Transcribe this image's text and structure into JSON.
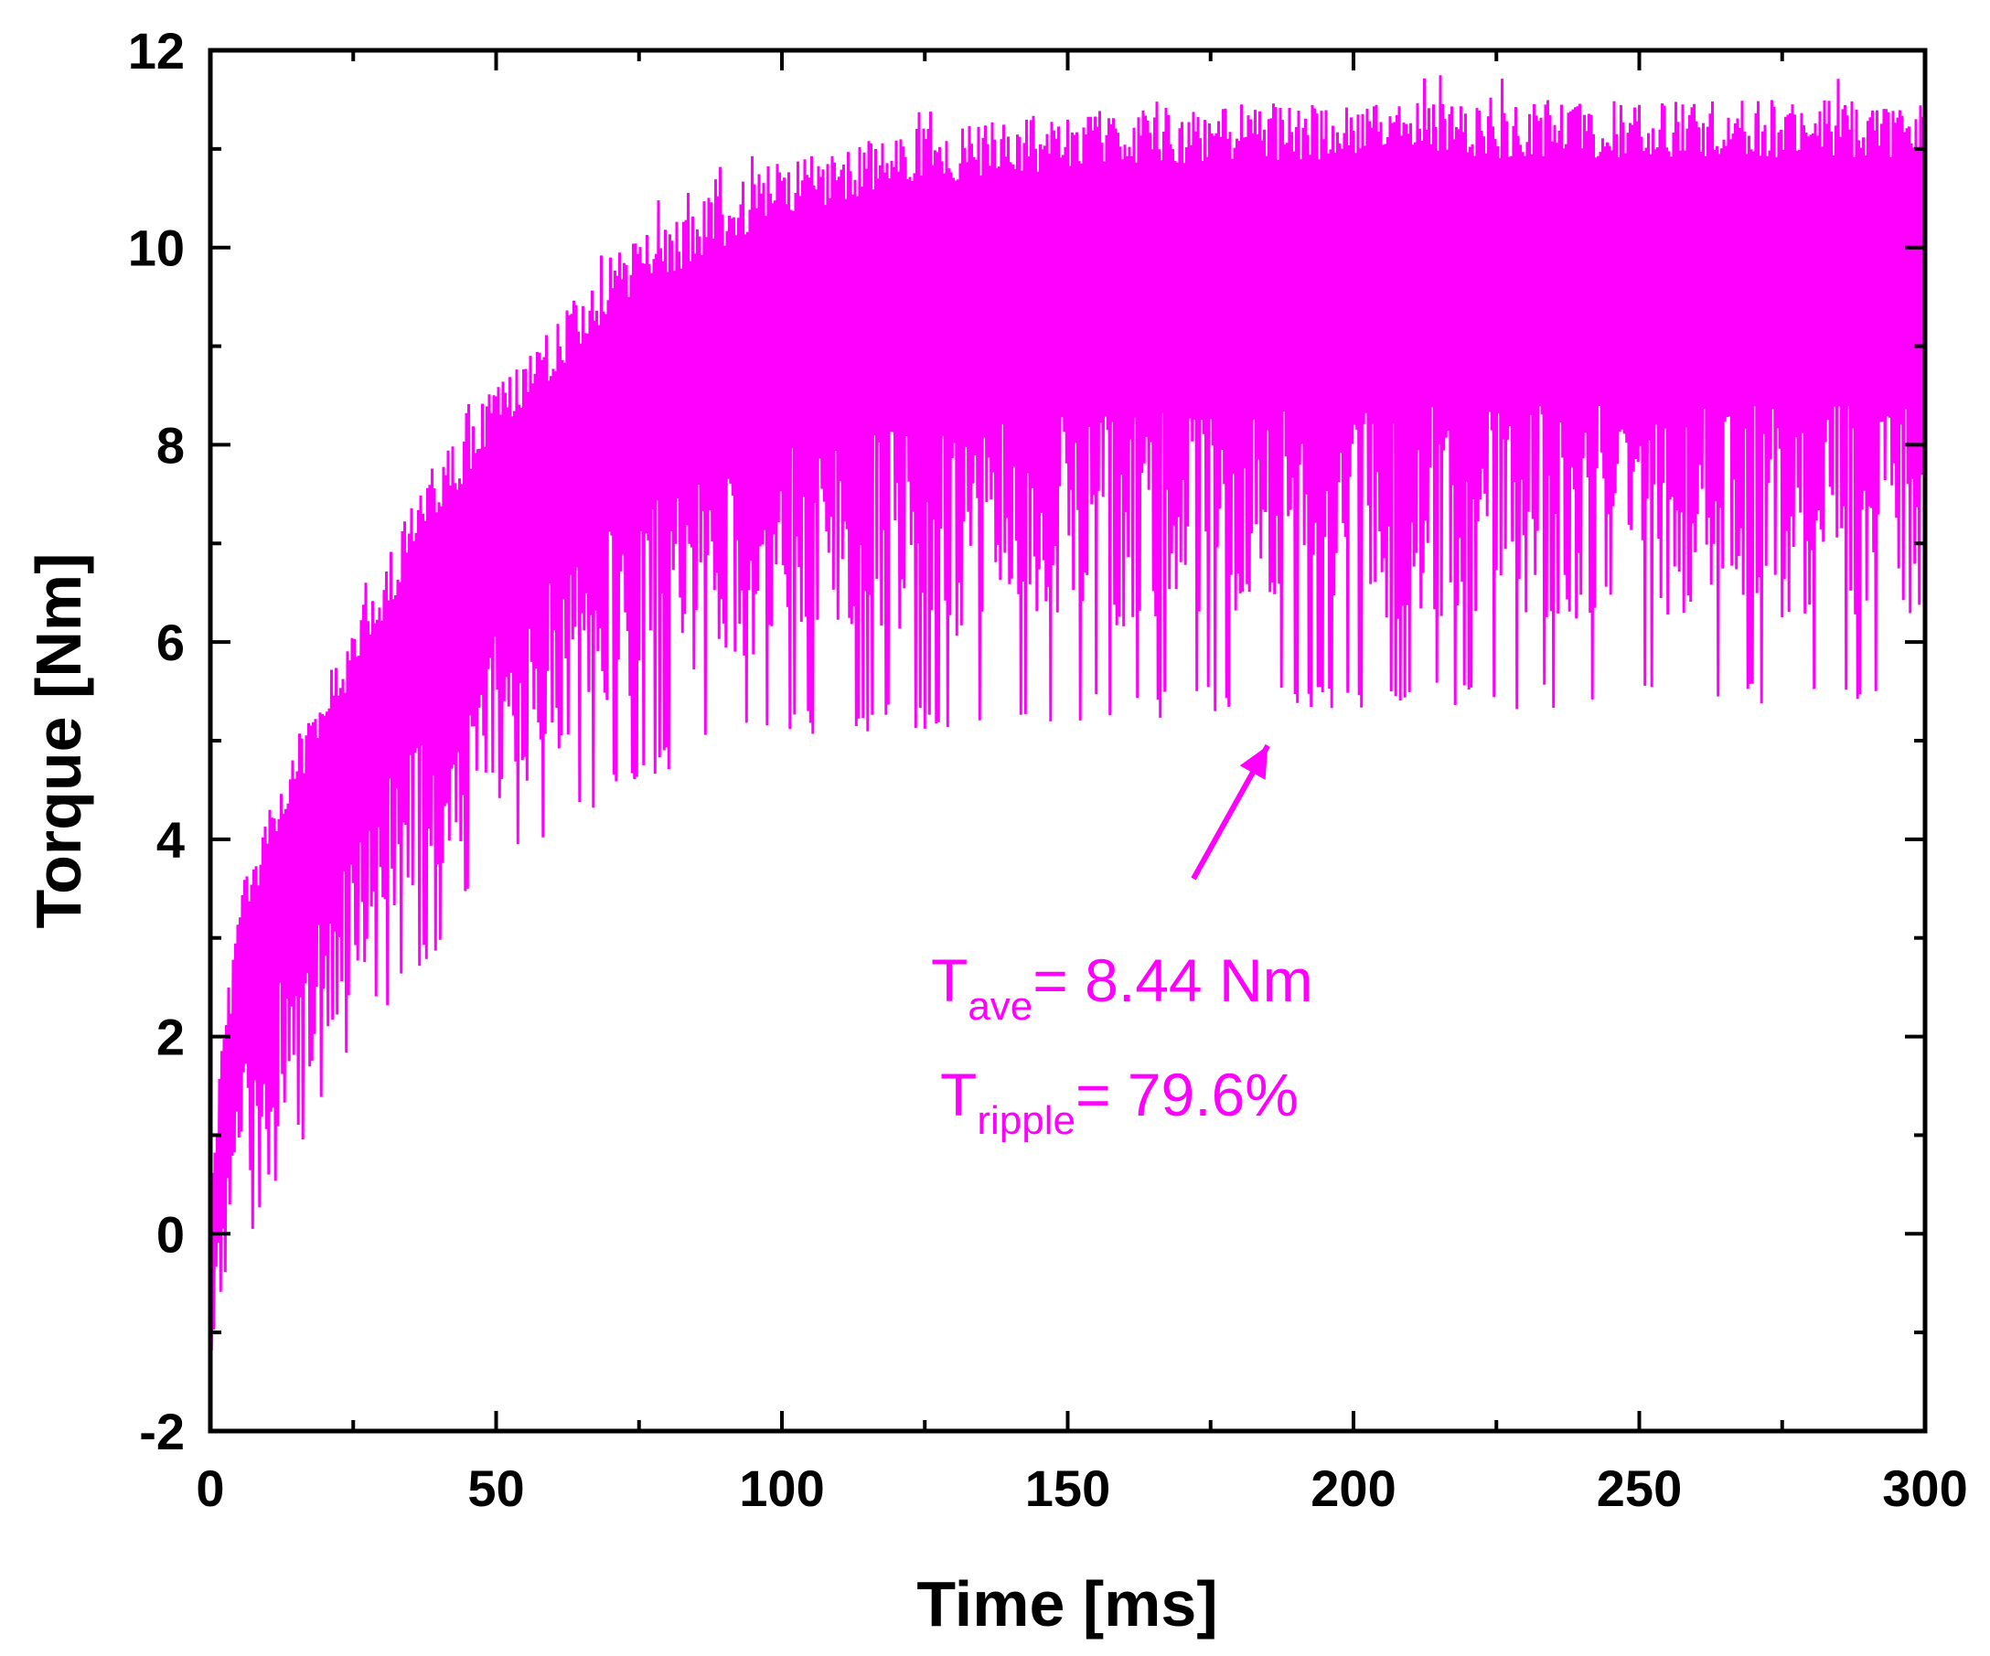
{
  "chart_data": {
    "type": "line",
    "title": "",
    "xlabel": "Time [ms]",
    "ylabel": "Torque [Nm]",
    "xlim": [
      0,
      300
    ],
    "ylim": [
      -2,
      12
    ],
    "x_ticks": [
      0,
      50,
      100,
      150,
      200,
      250,
      300
    ],
    "y_ticks": [
      -2,
      0,
      2,
      4,
      6,
      8,
      10,
      12
    ],
    "x_tick_labels": [
      "0",
      "50",
      "100",
      "150",
      "200",
      "250",
      "300"
    ],
    "y_tick_labels": [
      "-2",
      "0",
      "2",
      "4",
      "6",
      "8",
      "10",
      "12"
    ],
    "grid": false,
    "series": [
      {
        "name": "Torque",
        "color": "#ff00ff",
        "envelope": {
          "time_ms": [
            0,
            5,
            10,
            20,
            30,
            40,
            50,
            60,
            70,
            80,
            90,
            100,
            120,
            150,
            200,
            250,
            300
          ],
          "upper_nm": [
            0.8,
            3.6,
            4.3,
            5.6,
            6.8,
            7.9,
            8.6,
            9.3,
            9.9,
            10.3,
            10.6,
            10.9,
            11.2,
            11.4,
            11.5,
            11.5,
            11.5
          ],
          "lower_nm": [
            -1.6,
            -0.5,
            0.3,
            1.3,
            2.2,
            2.9,
            3.6,
            4.0,
            4.4,
            4.7,
            4.9,
            5.0,
            5.1,
            5.2,
            5.3,
            5.3,
            5.3
          ]
        }
      }
    ],
    "annotations": {
      "t_ave": {
        "main": "T",
        "sub": "ave",
        "rest": "= 8.44 Nm"
      },
      "t_ripple": {
        "main": "T",
        "sub": "ripple",
        "rest": "= 79.6%"
      },
      "arrow_from": [
        172,
        3.6
      ],
      "arrow_to": [
        185,
        4.95
      ],
      "color": "#ff00ff"
    }
  }
}
